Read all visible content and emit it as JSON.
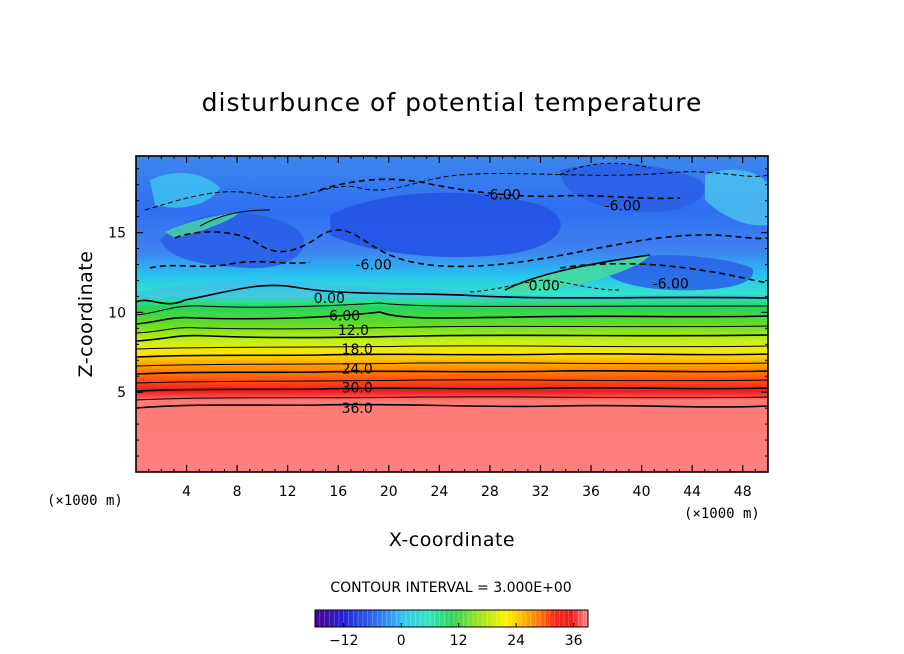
{
  "chart_data": {
    "type": "contour",
    "title": "disturbunce of potential temperature",
    "xlabel": "X-coordinate",
    "ylabel": "Z-coordinate",
    "x_unit": "(×1000 m)",
    "y_unit": "(×1000 m)",
    "xlim": [
      0,
      50
    ],
    "ylim": [
      0,
      19.8
    ],
    "x_ticks": [
      4,
      8,
      12,
      16,
      20,
      24,
      28,
      32,
      36,
      40,
      44,
      48
    ],
    "y_ticks": [
      5,
      10,
      15
    ],
    "contour_interval_text": "CONTOUR INTERVAL = 3.000E+00",
    "contour_labels": [
      {
        "text": "0.00",
        "x": 15.3,
        "y": 10.9
      },
      {
        "text": "6.00",
        "x": 16.5,
        "y": 9.8
      },
      {
        "text": "12.0",
        "x": 17.2,
        "y": 8.9
      },
      {
        "text": "18.0",
        "x": 17.5,
        "y": 7.7
      },
      {
        "text": "24.0",
        "x": 17.5,
        "y": 6.5
      },
      {
        "text": "30.0",
        "x": 17.5,
        "y": 5.3
      },
      {
        "text": "36.0",
        "x": 17.5,
        "y": 4.0
      },
      {
        "text": "-6.00",
        "x": 18.8,
        "y": 13.0
      },
      {
        "text": "-6.00",
        "x": 29.0,
        "y": 17.4
      },
      {
        "text": "-6.00",
        "x": 38.5,
        "y": 16.7
      },
      {
        "text": "-6.00",
        "x": 42.3,
        "y": 11.8
      },
      {
        "text": "0.00",
        "x": 32.3,
        "y": 11.7
      }
    ],
    "colorbar": {
      "min": -18,
      "max": 39,
      "ticks": [
        -12,
        0,
        12,
        24,
        36
      ],
      "tick_labels": [
        "-12",
        "0",
        "12",
        "24",
        "36"
      ]
    }
  }
}
